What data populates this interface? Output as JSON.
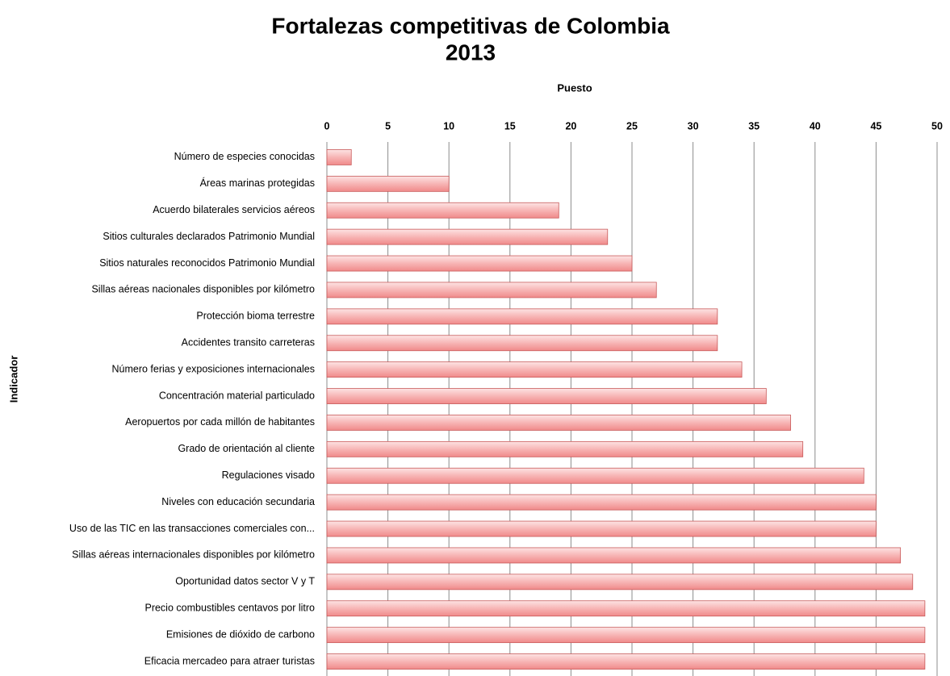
{
  "chart_data": {
    "type": "hbar",
    "title": "Fortalezas competitivas de Colombia",
    "subtitle": "2013",
    "x_label": "Puesto",
    "y_label": "Indicador",
    "categories": [
      "Número de especies conocidas",
      "Áreas marinas protegidas",
      "Acuerdo bilaterales servicios aéreos",
      "Sitios culturales declarados Patrimonio Mundial",
      "Sitios naturales reconocidos Patrimonio Mundial",
      "Sillas aéreas nacionales disponibles por kilómetro",
      "Protección bioma terrestre",
      "Accidentes transito carreteras",
      "Número ferias y exposiciones internacionales",
      "Concentración material particulado",
      "Aeropuertos por cada millón de habitantes",
      "Grado de orientación al cliente",
      "Regulaciones visado",
      "Niveles con educación secundaria",
      "Uso de las TIC en las transacciones comerciales con...",
      "Sillas aéreas internacionales disponibles por kilómetro",
      "Oportunidad datos sector V y T",
      "Precio combustibles centavos por litro",
      "Emisiones de dióxido de carbono",
      "Eficacia mercadeo para atraer turistas"
    ],
    "values": [
      2,
      10,
      19,
      23,
      25,
      27,
      32,
      32,
      34,
      36,
      38,
      39,
      44,
      45,
      45,
      47,
      48,
      49,
      49,
      49
    ],
    "color": "#f4a0a0",
    "xlim": [
      0,
      50
    ],
    "xticks": [
      0,
      5,
      10,
      15,
      20,
      25,
      30,
      35,
      40,
      45,
      50
    ],
    "grid": true
  }
}
